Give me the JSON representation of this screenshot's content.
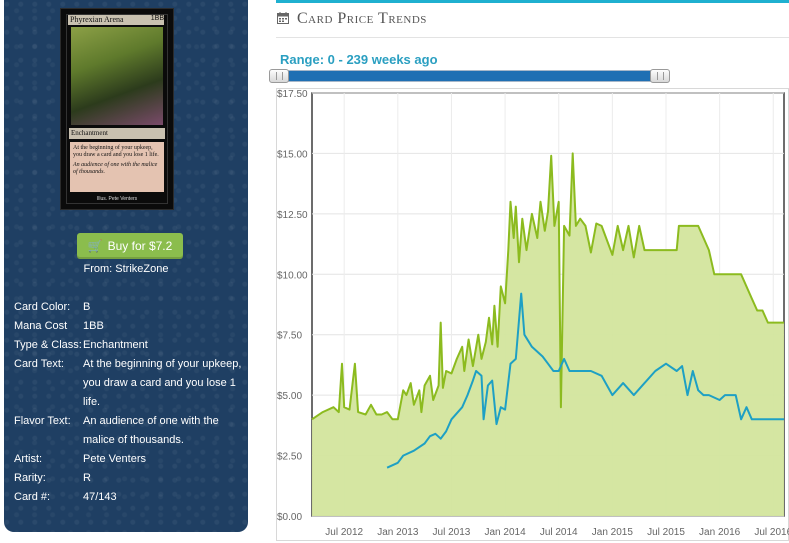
{
  "card": {
    "image_name": "Phyrexian Arena",
    "image_cost": "1BB",
    "image_type": "Enchantment",
    "image_rules_text": "At the beginning of your upkeep, you draw a card and you lose 1 life.",
    "image_flavor_text": "An audience of one with the malice of thousands.",
    "image_artist": "Illus. Pete Venters"
  },
  "buy": {
    "label": "Buy for $7.2",
    "from_label": "From: StrikeZone"
  },
  "attributes": [
    {
      "label": "Card Color:",
      "value": "B"
    },
    {
      "label": "Mana Cost",
      "value": "1BB"
    },
    {
      "label": "Type & Class:",
      "value": "Enchantment"
    },
    {
      "label": "Card Text:",
      "value": "At the beginning of your upkeep, you draw a card and you lose 1 life."
    },
    {
      "label": "Flavor Text:",
      "value": "An audience of one with the malice of thousands."
    },
    {
      "label": "Artist:",
      "value": "Pete Venters"
    },
    {
      "label": "Rarity:",
      "value": "R"
    },
    {
      "label": "Card #:",
      "value": "47/143"
    }
  ],
  "section": {
    "title": "Card Price Trends",
    "range_label": "Range: 0 - 239 weeks ago"
  },
  "colors": {
    "accent": "#1fb0d0",
    "panel": "#1f3f63",
    "buy_button": "#8bbd4d",
    "series_green": "#8cbb1f",
    "series_green_fill": "#d3e59d",
    "series_blue": "#1ea0c4"
  },
  "chart_data": {
    "type": "area",
    "title": "",
    "xlabel": "",
    "ylabel": "",
    "ylim": [
      0,
      17.5
    ],
    "y_ticks": [
      "$0.00",
      "$2.50",
      "$5.00",
      "$7.50",
      "$10.00",
      "$12.50",
      "$15.00",
      "$17.50"
    ],
    "y_tick_values": [
      0,
      2.5,
      5,
      7.5,
      10,
      12.5,
      15,
      17.5
    ],
    "x_ticks": [
      "Jul 2012",
      "Jan 2013",
      "Jul 2013",
      "Jan 2014",
      "Jul 2014",
      "Jan 2015",
      "Jul 2015",
      "Jan 2016",
      "Jul 2016"
    ],
    "x_tick_values": [
      2012.5,
      2013.0,
      2013.5,
      2014.0,
      2014.5,
      2015.0,
      2015.5,
      2016.0,
      2016.5
    ],
    "xlim": [
      2012.2,
      2016.6
    ],
    "grid": true,
    "series": [
      {
        "points": [
          [
            2012.2,
            4.0
          ],
          [
            2012.3,
            4.3
          ],
          [
            2012.4,
            4.5
          ],
          [
            2012.45,
            4.3
          ],
          [
            2012.48,
            6.3
          ],
          [
            2012.5,
            4.5
          ],
          [
            2012.55,
            4.4
          ],
          [
            2012.6,
            6.3
          ],
          [
            2012.63,
            4.3
          ],
          [
            2012.7,
            4.2
          ],
          [
            2012.75,
            4.6
          ],
          [
            2012.8,
            4.2
          ],
          [
            2012.85,
            4.2
          ],
          [
            2012.9,
            4.3
          ],
          [
            2012.95,
            4.0
          ],
          [
            2013.0,
            4.0
          ],
          [
            2013.05,
            5.2
          ],
          [
            2013.08,
            5.0
          ],
          [
            2013.12,
            5.5
          ],
          [
            2013.15,
            4.6
          ],
          [
            2013.2,
            5.2
          ],
          [
            2013.22,
            4.3
          ],
          [
            2013.25,
            5.4
          ],
          [
            2013.3,
            5.8
          ],
          [
            2013.33,
            4.8
          ],
          [
            2013.38,
            5.4
          ],
          [
            2013.4,
            8.0
          ],
          [
            2013.42,
            5.3
          ],
          [
            2013.45,
            6.0
          ],
          [
            2013.5,
            5.9
          ],
          [
            2013.55,
            6.5
          ],
          [
            2013.6,
            7.0
          ],
          [
            2013.62,
            6.0
          ],
          [
            2013.66,
            7.3
          ],
          [
            2013.7,
            6.2
          ],
          [
            2013.75,
            7.5
          ],
          [
            2013.78,
            6.5
          ],
          [
            2013.82,
            7.2
          ],
          [
            2013.85,
            8.2
          ],
          [
            2013.88,
            7.1
          ],
          [
            2013.9,
            8.7
          ],
          [
            2013.93,
            7.0
          ],
          [
            2013.96,
            9.5
          ],
          [
            2014.0,
            8.8
          ],
          [
            2014.03,
            11.0
          ],
          [
            2014.05,
            13.0
          ],
          [
            2014.08,
            11.5
          ],
          [
            2014.1,
            12.8
          ],
          [
            2014.13,
            10.5
          ],
          [
            2014.16,
            12.3
          ],
          [
            2014.2,
            11.0
          ],
          [
            2014.25,
            12.5
          ],
          [
            2014.3,
            11.5
          ],
          [
            2014.33,
            13.0
          ],
          [
            2014.37,
            11.8
          ],
          [
            2014.4,
            12.6
          ],
          [
            2014.43,
            14.9
          ],
          [
            2014.46,
            12.0
          ],
          [
            2014.5,
            13.0
          ],
          [
            2014.52,
            4.5
          ],
          [
            2014.55,
            12.0
          ],
          [
            2014.6,
            11.6
          ],
          [
            2014.63,
            15.0
          ],
          [
            2014.66,
            12.0
          ],
          [
            2014.7,
            12.3
          ],
          [
            2014.75,
            12.0
          ],
          [
            2014.8,
            10.9
          ],
          [
            2014.85,
            12.1
          ],
          [
            2014.9,
            12.0
          ],
          [
            2015.0,
            10.8
          ],
          [
            2015.05,
            12.0
          ],
          [
            2015.1,
            11.0
          ],
          [
            2015.15,
            12.0
          ],
          [
            2015.2,
            10.7
          ],
          [
            2015.25,
            12.0
          ],
          [
            2015.3,
            11.0
          ],
          [
            2015.4,
            11.0
          ],
          [
            2015.5,
            11.0
          ],
          [
            2015.6,
            11.0
          ],
          [
            2015.62,
            12.0
          ],
          [
            2015.7,
            12.0
          ],
          [
            2015.8,
            12.0
          ],
          [
            2015.9,
            11.0
          ],
          [
            2015.95,
            10.0
          ],
          [
            2016.1,
            10.0
          ],
          [
            2016.2,
            10.0
          ],
          [
            2016.3,
            9.0
          ],
          [
            2016.35,
            8.5
          ],
          [
            2016.4,
            8.5
          ],
          [
            2016.45,
            8.0
          ],
          [
            2016.6,
            8.0
          ]
        ]
      },
      {
        "points": [
          [
            2012.9,
            2.0
          ],
          [
            2013.0,
            2.2
          ],
          [
            2013.05,
            2.5
          ],
          [
            2013.15,
            2.7
          ],
          [
            2013.25,
            3.0
          ],
          [
            2013.3,
            3.3
          ],
          [
            2013.35,
            3.4
          ],
          [
            2013.4,
            3.2
          ],
          [
            2013.45,
            3.5
          ],
          [
            2013.5,
            4.0
          ],
          [
            2013.6,
            4.5
          ],
          [
            2013.65,
            5.0
          ],
          [
            2013.7,
            5.6
          ],
          [
            2013.73,
            6.0
          ],
          [
            2013.78,
            5.8
          ],
          [
            2013.8,
            4.0
          ],
          [
            2013.84,
            5.4
          ],
          [
            2013.88,
            5.6
          ],
          [
            2013.92,
            3.8
          ],
          [
            2013.96,
            4.5
          ],
          [
            2014.0,
            4.4
          ],
          [
            2014.05,
            6.3
          ],
          [
            2014.1,
            6.5
          ],
          [
            2014.15,
            9.2
          ],
          [
            2014.18,
            7.5
          ],
          [
            2014.25,
            7.0
          ],
          [
            2014.35,
            6.6
          ],
          [
            2014.4,
            6.3
          ],
          [
            2014.45,
            6.0
          ],
          [
            2014.5,
            6.0
          ],
          [
            2014.55,
            6.5
          ],
          [
            2014.6,
            6.0
          ],
          [
            2014.7,
            6.0
          ],
          [
            2014.8,
            6.0
          ],
          [
            2014.9,
            5.8
          ],
          [
            2015.0,
            5.0
          ],
          [
            2015.1,
            5.5
          ],
          [
            2015.2,
            5.0
          ],
          [
            2015.3,
            5.5
          ],
          [
            2015.4,
            6.0
          ],
          [
            2015.5,
            6.3
          ],
          [
            2015.6,
            6.0
          ],
          [
            2015.65,
            6.2
          ],
          [
            2015.7,
            5.0
          ],
          [
            2015.75,
            6.0
          ],
          [
            2015.8,
            5.2
          ],
          [
            2015.85,
            5.0
          ],
          [
            2015.9,
            5.0
          ],
          [
            2016.0,
            4.8
          ],
          [
            2016.05,
            5.0
          ],
          [
            2016.15,
            5.0
          ],
          [
            2016.2,
            4.0
          ],
          [
            2016.25,
            4.5
          ],
          [
            2016.3,
            4.0
          ],
          [
            2016.6,
            4.0
          ]
        ]
      }
    ]
  }
}
